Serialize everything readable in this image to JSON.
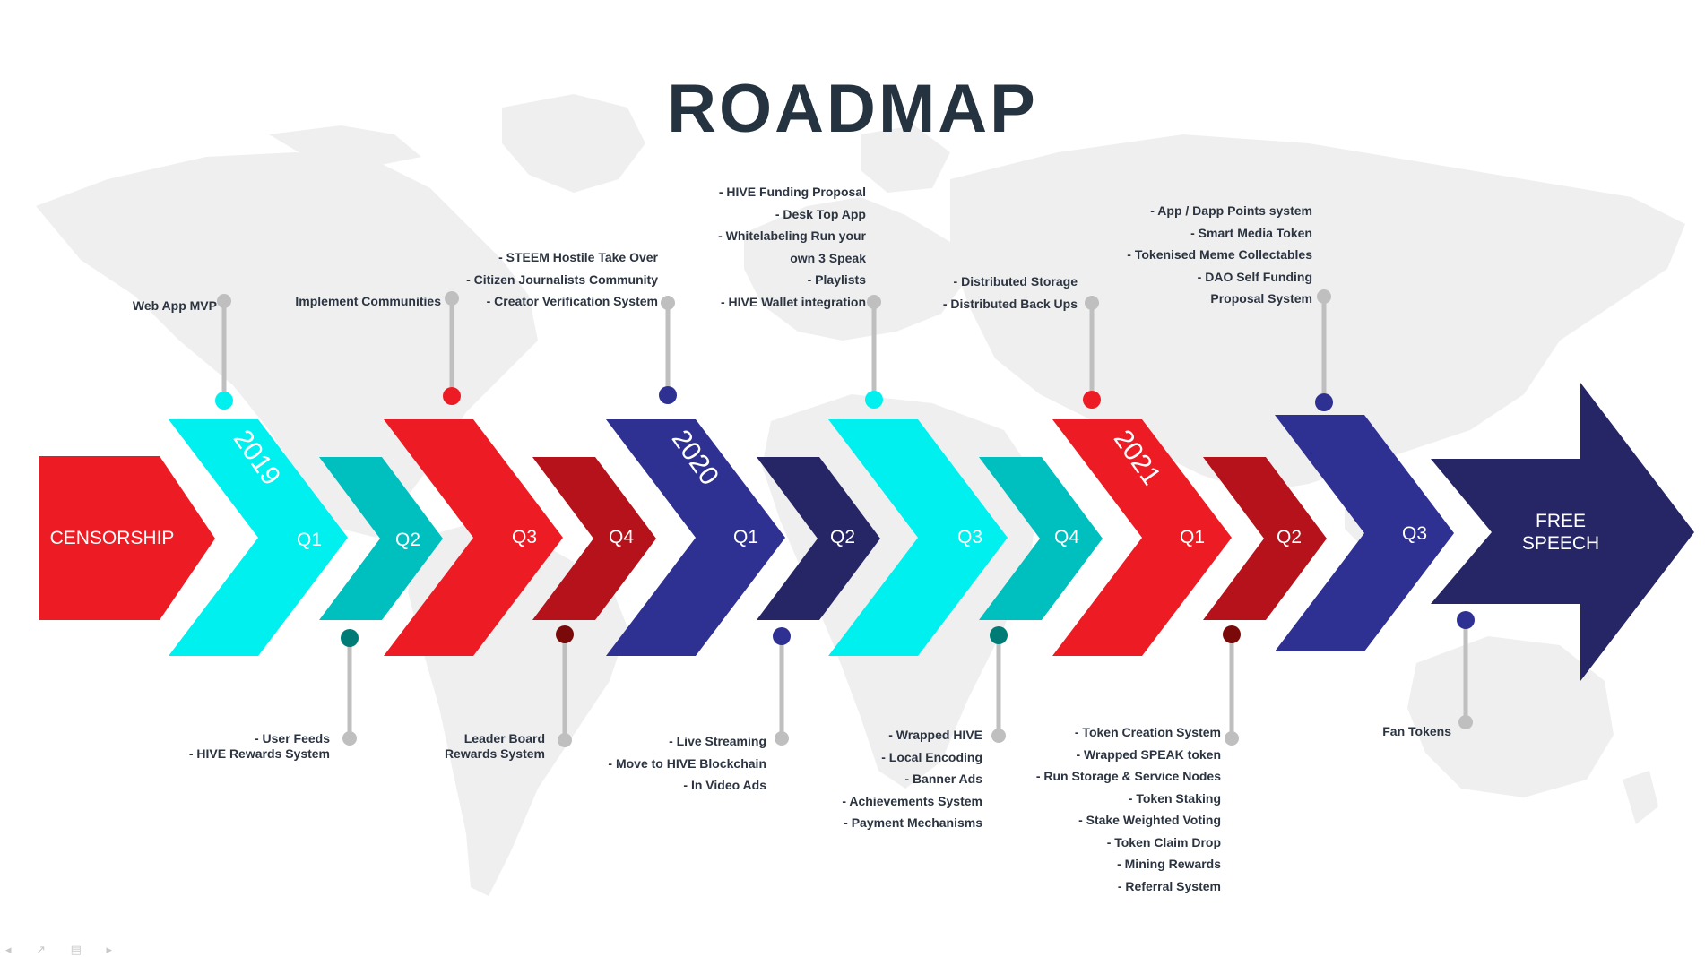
{
  "title": "ROADMAP",
  "colors": {
    "red": "#ed1c24",
    "dark_red": "#b5121b",
    "cyan": "#00f0f0",
    "teal": "#00bfbf",
    "indigo": "#2e3192",
    "navy": "#262566",
    "dark_teal": "#007b76",
    "maroon": "#7a0a0a",
    "connector": "#bfbfbf",
    "map": "#efefef",
    "text": "#2b3440"
  },
  "start_label": "CENSORSHIP",
  "end_label": [
    "FREE",
    "SPEECH"
  ],
  "years": [
    {
      "label": "2019",
      "color": "cyan"
    },
    {
      "label": "2020",
      "color": "indigo"
    },
    {
      "label": "2021",
      "color": "red"
    }
  ],
  "chevrons": [
    {
      "label": "Q1",
      "color": "cyan",
      "size": "big"
    },
    {
      "label": "Q2",
      "color": "teal",
      "size": "small"
    },
    {
      "label": "Q3",
      "color": "red",
      "size": "big"
    },
    {
      "label": "Q4",
      "color": "dark_red",
      "size": "small"
    },
    {
      "label": "Q1",
      "color": "indigo",
      "size": "big"
    },
    {
      "label": "Q2",
      "color": "navy",
      "size": "small"
    },
    {
      "label": "Q3",
      "color": "cyan",
      "size": "big"
    },
    {
      "label": "Q4",
      "color": "teal",
      "size": "small"
    },
    {
      "label": "Q1",
      "color": "red",
      "size": "big"
    },
    {
      "label": "Q2",
      "color": "dark_red",
      "size": "small"
    },
    {
      "label": "Q3",
      "color": "indigo",
      "size": "big"
    }
  ],
  "milestones_top": [
    {
      "dot": "cyan",
      "lines": [
        "Web App MVP"
      ]
    },
    {
      "dot": "red",
      "lines": [
        "Implement Communities"
      ]
    },
    {
      "dot": "indigo",
      "lines": [
        "- STEEM  Hostile Take Over",
        "- Citizen Journalists  Community",
        "- Creator Verification System"
      ]
    },
    {
      "dot": "cyan",
      "lines": [
        "- HIVE  Funding Proposal",
        "- Desk Top App",
        "- Whitelabeling Run your",
        "own 3 Speak",
        "- Playlists",
        "- HIVE  Wallet integration"
      ]
    },
    {
      "dot": "red",
      "lines": [
        "- Distributed  Storage",
        "- Distributed  Back Ups"
      ]
    },
    {
      "dot": "indigo",
      "lines": [
        "- App / Dapp Points system",
        "- Smart Media Token",
        "- Tokenised Meme Collectables",
        "- DAO  Self Funding",
        "Proposal System"
      ]
    }
  ],
  "milestones_bottom": [
    {
      "dot": "dark_teal",
      "lines": [
        "- User Feeds",
        "- HIVE  Rewards System"
      ]
    },
    {
      "dot": "maroon",
      "lines": [
        "Leader Board",
        "Rewards System"
      ]
    },
    {
      "dot": "indigo",
      "lines": [
        "- Live Streaming",
        "- Move to HIVE  Blockchain",
        "- In Video Ads"
      ]
    },
    {
      "dot": "dark_teal",
      "lines": [
        "- Wrapped HIVE",
        "- Local Encoding",
        "- Banner Ads",
        "- Achievements System",
        "- Payment Mechanisms"
      ]
    },
    {
      "dot": "maroon",
      "lines": [
        "- Token  Creation System",
        "- Wrapped SPEAK token",
        "- Run Storage &  Service Nodes",
        "- Token Staking",
        "- Stake Weighted Voting",
        "- Token Claim Drop",
        "- Mining Rewards",
        "- Referral System"
      ]
    },
    {
      "dot": "indigo",
      "lines": [
        "Fan Tokens"
      ]
    }
  ]
}
